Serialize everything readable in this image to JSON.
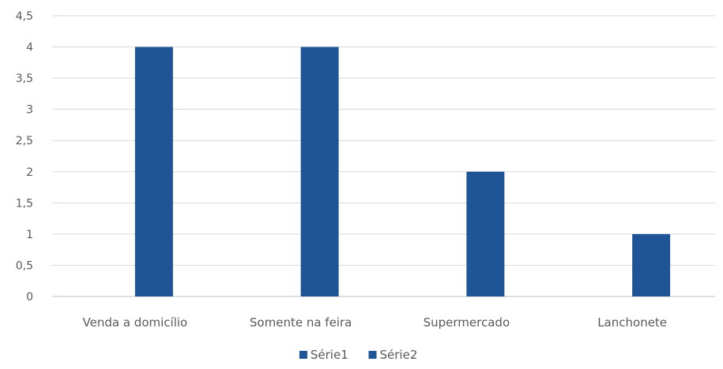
{
  "chart_data": {
    "type": "bar",
    "categories": [
      "Venda a domicílio",
      "Somente na feira",
      "Supermercado",
      "Lanchonete"
    ],
    "series": [
      {
        "name": "Série1",
        "values": [
          0,
          0,
          0,
          0
        ],
        "color": "#1f5597"
      },
      {
        "name": "Série2",
        "values": [
          4,
          4,
          2,
          1
        ],
        "color": "#1f5597"
      }
    ],
    "y_ticks": [
      "0",
      "0,5",
      "1",
      "1,5",
      "2",
      "2,5",
      "3",
      "3,5",
      "4",
      "4,5"
    ],
    "ylim": [
      0,
      4.5
    ],
    "grid": true,
    "legend_position": "bottom",
    "title": "",
    "xlabel": "",
    "ylabel": ""
  }
}
